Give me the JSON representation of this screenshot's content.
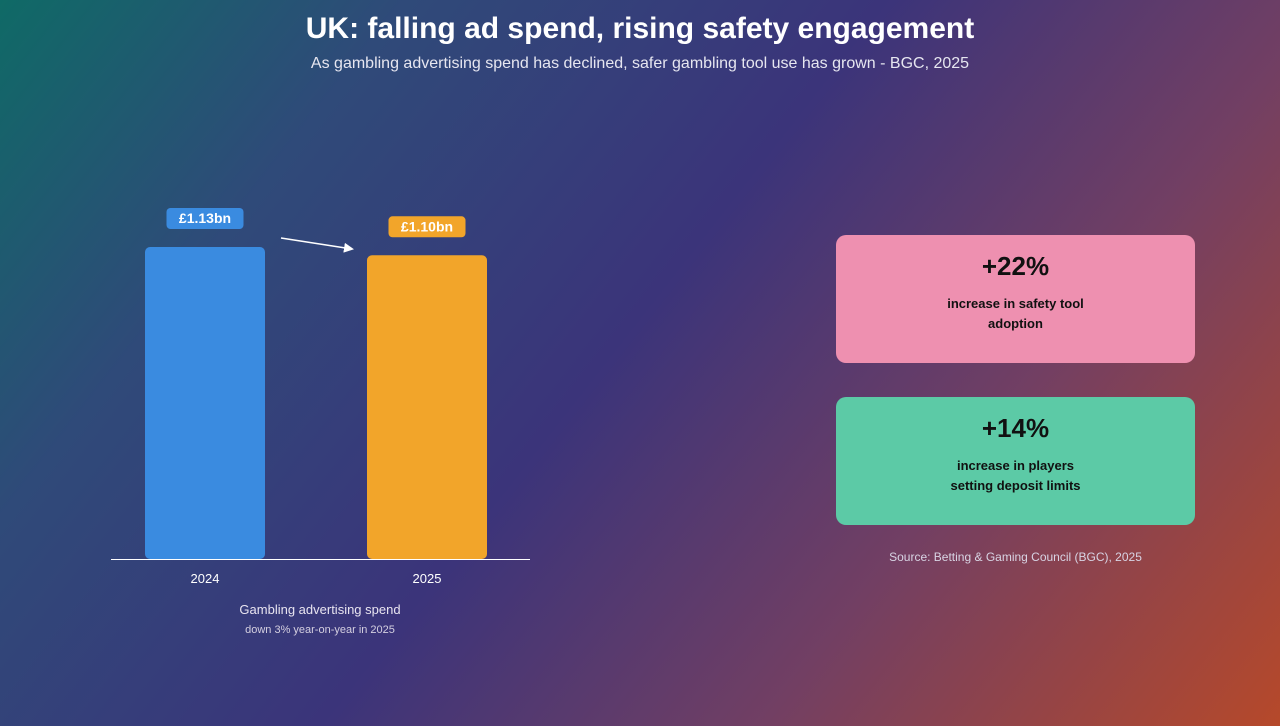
{
  "header": {
    "title": "UK: falling ad spend, rising safety engagement",
    "subtitle": "As gambling advertising spend has declined, safer gambling tool use has grown - BGC, 2025"
  },
  "chart_data": {
    "type": "bar",
    "categories": [
      "2024",
      "2025"
    ],
    "values": [
      1.13,
      1.1
    ],
    "data_labels": [
      "£1.13bn",
      "£1.10bn"
    ],
    "colors": [
      "#3a8be0",
      "#f2a52a"
    ],
    "unit": "£bn",
    "ylim": [
      0,
      1.13
    ],
    "grid": false,
    "xlabel": "Gambling advertising spend",
    "caption": "down 3% year-on-year in 2025"
  },
  "cards": [
    {
      "value": "+22%",
      "text": "increase in safety tool adoption",
      "color": "#ee90b0"
    },
    {
      "value": "+14%",
      "text": "increase in players setting deposit limits",
      "color": "#5ccaa6"
    }
  ],
  "source": "Source: Betting & Gaming Council (BGC), 2025"
}
